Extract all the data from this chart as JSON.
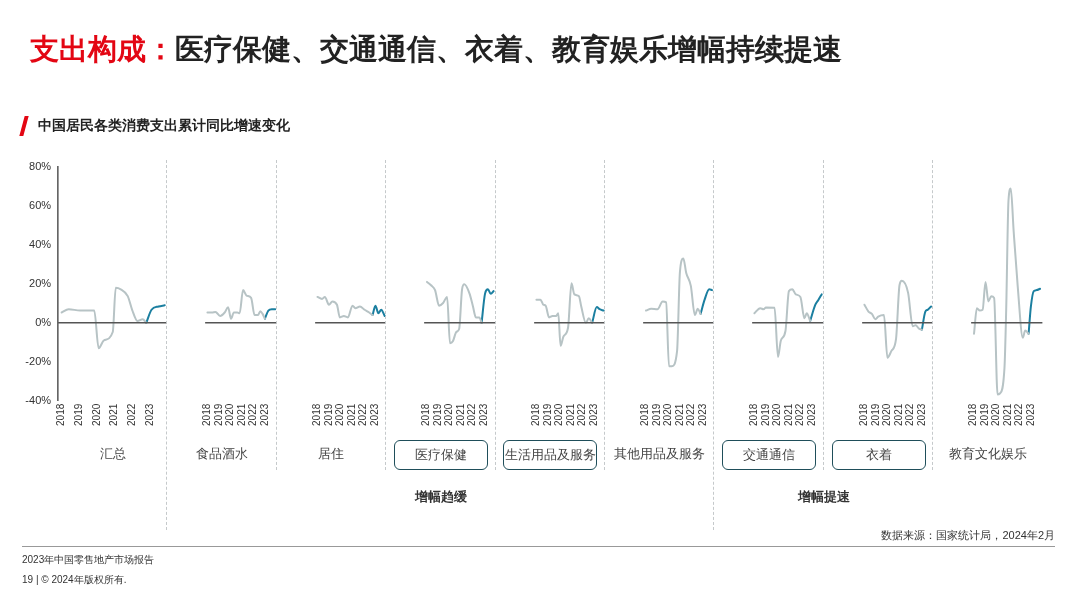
{
  "chart_data": [
    {
      "type": "line",
      "title": "支出构成：医疗保健、交通通信、衣着、教育娱乐增幅持续提速",
      "subtitle": "中国居民各类消费支出累计同比增速变化",
      "xlabel": "汇总",
      "annotations": [
        "增幅趋缓",
        "增幅提速",
        "数据来源：国家统计局，2024年2月",
        "2023年中国零售地产市场报告",
        "19 | © 2024年版权所有."
      ],
      "xlim": [
        2017.8,
        2024
      ],
      "xticks": [
        2018,
        2019,
        2020,
        2021,
        2022,
        2023
      ],
      "ylim": [
        -40,
        80
      ],
      "yticks": [
        {
          "value": 80,
          "label": "80%"
        },
        {
          "value": 60,
          "label": "60%"
        },
        {
          "value": 40,
          "label": "40%"
        },
        {
          "value": 20,
          "label": "20%"
        },
        {
          "value": 0,
          "label": "0%"
        },
        {
          "value": -20,
          "label": "-20%"
        },
        {
          "value": -40,
          "label": "-40%"
        }
      ],
      "marker": "none",
      "line_style": "solid",
      "ref_lines": [
        {
          "axis": "y",
          "value": 0,
          "color": "#555555"
        }
      ],
      "series": [
        {
          "color": "#b7c3c5",
          "x": [
            2018.0,
            2018.4,
            2019.05,
            2019.85,
            2020.1,
            2020.4,
            2020.9,
            2021.07,
            2021.35,
            2021.75,
            2022.0,
            2022.3,
            2022.6,
            2022.8
          ],
          "values": [
            5.3,
            7,
            6.3,
            6.3,
            -13,
            -9,
            -4.7,
            18,
            17.2,
            13.7,
            6.7,
            1,
            1.8,
            0
          ]
        },
        {
          "color": "#1b7fa0",
          "x": [
            2022.8,
            2023.1,
            2023.5,
            2023.85
          ],
          "values": [
            0,
            6.7,
            8.4,
            9
          ]
        }
      ]
    },
    {
      "type": "line",
      "xlabel": "食品酒水",
      "xlim": [
        2017.8,
        2024
      ],
      "xticks": [
        2018,
        2019,
        2020,
        2021,
        2022,
        2023
      ],
      "ylim": [
        -40,
        80
      ],
      "tick_labels": "x",
      "marker": "none",
      "line_style": "solid",
      "ref_lines": [
        {
          "axis": "y",
          "value": 0,
          "color": "#555555"
        }
      ],
      "series": [
        {
          "color": "#b7c3c5",
          "x": [
            2018.0,
            2018.4,
            2018.7,
            2019.1,
            2019.5,
            2019.8,
            2020.05,
            2020.3,
            2020.6,
            2020.8,
            2021.1,
            2021.4,
            2021.8,
            2022.1,
            2022.4,
            2022.6,
            2022.8,
            2023.0
          ],
          "values": [
            5.3,
            5.3,
            5.6,
            3.5,
            5.3,
            8,
            2.1,
            5.3,
            5.3,
            4.9,
            16.8,
            14,
            12.8,
            4,
            4,
            6,
            4.6,
            2.1
          ]
        },
        {
          "color": "#1b7fa0",
          "x": [
            2023.0,
            2023.3,
            2023.6,
            2023.9
          ],
          "values": [
            2.1,
            6.3,
            7,
            7
          ]
        }
      ]
    },
    {
      "type": "line",
      "xlabel": "居住",
      "xlim": [
        2017.8,
        2024
      ],
      "xticks": [
        2018,
        2019,
        2020,
        2021,
        2022,
        2023
      ],
      "ylim": [
        -40,
        80
      ],
      "tick_labels": "x",
      "marker": "none",
      "line_style": "solid",
      "ref_lines": [
        {
          "axis": "y",
          "value": 0,
          "color": "#555555"
        }
      ],
      "series": [
        {
          "color": "#b7c3c5",
          "x": [
            2018.0,
            2018.4,
            2018.65,
            2019.0,
            2019.3,
            2019.7,
            2019.95,
            2020.3,
            2020.65,
            2021.05,
            2021.3,
            2021.7,
            2022.1,
            2022.5,
            2022.8
          ],
          "values": [
            13.3,
            12.3,
            13.3,
            9.3,
            11,
            9.3,
            2.8,
            3.5,
            2.8,
            8.8,
            7.5,
            8.4,
            6.7,
            5.3,
            4
          ]
        },
        {
          "color": "#1b7fa0",
          "x": [
            2022.8,
            2023.05,
            2023.3,
            2023.55,
            2023.85
          ],
          "values": [
            4,
            8.8,
            4.9,
            6.7,
            3.5
          ]
        }
      ]
    },
    {
      "type": "line",
      "xlabel": "医疗保健",
      "xlim": [
        2017.8,
        2024
      ],
      "xticks": [
        2018,
        2019,
        2020,
        2021,
        2022,
        2023
      ],
      "ylim": [
        -40,
        80
      ],
      "tick_labels": "x",
      "marker": "none",
      "line_style": "solid",
      "ref_lines": [
        {
          "axis": "y",
          "value": 0,
          "color": "#555555"
        }
      ],
      "series": [
        {
          "color": "#b7c3c5",
          "x": [
            2018.05,
            2018.4,
            2018.75,
            2019.1,
            2019.45,
            2019.8,
            2020.05,
            2020.3,
            2020.6,
            2020.85,
            2021.1,
            2021.3,
            2021.75,
            2022.05,
            2022.3,
            2022.6,
            2022.8
          ],
          "values": [
            21,
            19.3,
            16.8,
            8.8,
            10.2,
            13.3,
            -10.5,
            -9.5,
            -4.7,
            -3,
            17.2,
            19.8,
            15,
            8.4,
            2.8,
            2.8,
            0
          ]
        },
        {
          "color": "#1b7fa0",
          "x": [
            2022.8,
            2023.1,
            2023.35,
            2023.6,
            2023.85
          ],
          "values": [
            0,
            15,
            17.2,
            14.9,
            16.3
          ]
        }
      ]
    },
    {
      "type": "line",
      "xlabel": "生活用品及服务",
      "xlim": [
        2017.8,
        2024
      ],
      "xticks": [
        2018,
        2019,
        2020,
        2021,
        2022,
        2023
      ],
      "ylim": [
        -40,
        80
      ],
      "tick_labels": "x",
      "marker": "none",
      "line_style": "solid",
      "ref_lines": [
        {
          "axis": "y",
          "value": 0,
          "color": "#555555"
        }
      ],
      "series": [
        {
          "color": "#b7c3c5",
          "x": [
            2018.0,
            2018.35,
            2018.6,
            2018.8,
            2019.1,
            2019.4,
            2019.7,
            2019.9,
            2020.1,
            2020.35,
            2020.75,
            2021.05,
            2021.3,
            2021.7,
            2021.9,
            2022.3,
            2022.55,
            2022.85
          ],
          "values": [
            11.9,
            11.9,
            9.3,
            8.8,
            2.8,
            3.5,
            3.5,
            4.9,
            -11.8,
            -7,
            -2.5,
            20.3,
            14.6,
            13.7,
            8.4,
            0,
            2.3,
            0
          ]
        },
        {
          "color": "#1b7fa0",
          "x": [
            2022.85,
            2023.25,
            2023.5,
            2023.85
          ],
          "values": [
            0,
            8.1,
            7,
            6.3
          ]
        }
      ]
    },
    {
      "type": "line",
      "xlabel": "其他用品及服务",
      "xlim": [
        2017.8,
        2024
      ],
      "xticks": [
        2018,
        2019,
        2020,
        2021,
        2022,
        2023
      ],
      "ylim": [
        -40,
        80
      ],
      "tick_labels": "x",
      "marker": "none",
      "line_style": "solid",
      "ref_lines": [
        {
          "axis": "y",
          "value": 0,
          "color": "#555555"
        }
      ],
      "series": [
        {
          "color": "#b7c3c5",
          "x": [
            2018.05,
            2018.5,
            2019.05,
            2019.5,
            2019.8,
            2020.05,
            2020.3,
            2020.75,
            2021.0,
            2021.3,
            2021.55,
            2021.95,
            2022.3,
            2022.55,
            2022.8
          ],
          "values": [
            6.3,
            7.2,
            7,
            11,
            10.5,
            -22.3,
            -22.3,
            -14.7,
            26,
            33,
            25.6,
            19,
            4,
            7.2,
            4.6
          ]
        },
        {
          "color": "#1b7fa0",
          "x": [
            2022.8,
            2023.15,
            2023.55,
            2023.8
          ],
          "values": [
            4.6,
            11.9,
            17.2,
            16.8
          ]
        }
      ]
    },
    {
      "type": "line",
      "xlabel": "交通通信",
      "xlim": [
        2017.8,
        2024
      ],
      "xticks": [
        2018,
        2019,
        2020,
        2021,
        2022,
        2023
      ],
      "ylim": [
        -40,
        80
      ],
      "tick_labels": "x",
      "marker": "none",
      "line_style": "solid",
      "ref_lines": [
        {
          "axis": "y",
          "value": 0,
          "color": "#555555"
        }
      ],
      "series": [
        {
          "color": "#b7c3c5",
          "x": [
            2018.0,
            2018.5,
            2018.8,
            2019.0,
            2019.75,
            2020.05,
            2020.3,
            2020.7,
            2021.0,
            2021.3,
            2021.6,
            2022.0,
            2022.35,
            2022.55,
            2022.85
          ],
          "values": [
            4.9,
            7.5,
            7,
            7.9,
            7.7,
            -17.5,
            -9.1,
            -4.2,
            16.3,
            17.2,
            14.6,
            13.3,
            2.3,
            4.9,
            1
          ]
        },
        {
          "color": "#1b7fa0",
          "x": [
            2022.85,
            2023.3,
            2023.55,
            2023.85
          ],
          "values": [
            1,
            9.3,
            11.6,
            14.6
          ]
        }
      ]
    },
    {
      "type": "line",
      "xlabel": "衣着",
      "xlim": [
        2017.8,
        2024
      ],
      "xticks": [
        2018,
        2019,
        2020,
        2021,
        2022,
        2023
      ],
      "ylim": [
        -40,
        80
      ],
      "tick_labels": "x",
      "marker": "none",
      "line_style": "solid",
      "ref_lines": [
        {
          "axis": "y",
          "value": 0,
          "color": "#555555"
        }
      ],
      "series": [
        {
          "color": "#b7c3c5",
          "x": [
            2018.0,
            2018.35,
            2018.65,
            2018.95,
            2019.2,
            2019.7,
            2020.0,
            2020.35,
            2020.75,
            2021.05,
            2021.25,
            2021.8,
            2022.2,
            2022.45,
            2022.75,
            2023.0
          ],
          "values": [
            9.3,
            5.8,
            4.6,
            1.8,
            3.2,
            4,
            -17.9,
            -14.4,
            -8.2,
            19.3,
            21.6,
            15.4,
            -1.8,
            -1.2,
            -3,
            -3.5
          ]
        },
        {
          "color": "#1b7fa0",
          "x": [
            2023.0,
            2023.3,
            2023.5,
            2023.8
          ],
          "values": [
            -3.5,
            5.8,
            6.7,
            8.4
          ]
        }
      ]
    },
    {
      "type": "line",
      "xlabel": "教育文化娱乐",
      "xlim": [
        2017.8,
        2024
      ],
      "xticks": [
        2018,
        2019,
        2020,
        2021,
        2022,
        2023
      ],
      "ylim": [
        -40,
        80
      ],
      "tick_labels": "x",
      "marker": "none",
      "line_style": "solid",
      "ref_lines": [
        {
          "axis": "y",
          "value": 0,
          "color": "#555555"
        }
      ],
      "series": [
        {
          "color": "#b7c3c5",
          "x": [
            2018.05,
            2018.3,
            2018.55,
            2018.8,
            2019.05,
            2019.3,
            2019.55,
            2019.8,
            2020.1,
            2020.3,
            2020.7,
            2020.85,
            2021.05,
            2021.25,
            2021.5,
            2021.85,
            2022.3,
            2022.5,
            2022.8
          ],
          "values": [
            -5.6,
            7.5,
            6.3,
            6.7,
            21,
            11,
            13.7,
            12.8,
            -36.8,
            -36.3,
            -23.2,
            6.7,
            62.8,
            69,
            47,
            19,
            -7.7,
            -3.9,
            -5.6
          ]
        },
        {
          "color": "#1b7fa0",
          "x": [
            2022.8,
            2023.0,
            2023.25,
            2023.5,
            2023.8
          ],
          "values": [
            -5.6,
            8.4,
            16.3,
            16.8,
            17.5
          ]
        }
      ]
    }
  ]
}
